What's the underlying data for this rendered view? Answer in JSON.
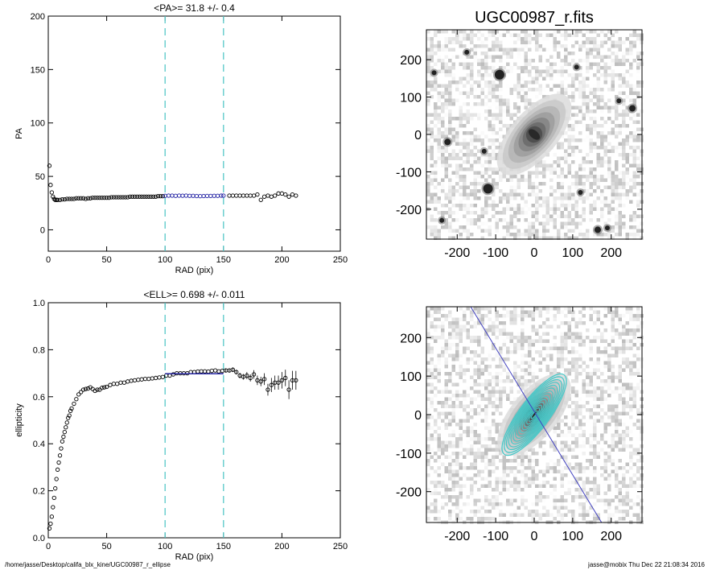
{
  "chart_data": [
    {
      "type": "scatter",
      "title": "<PA>=  31.8 +/-   0.4",
      "xlabel": "RAD (pix)",
      "ylabel": "PA",
      "xlim": [
        0,
        250
      ],
      "ylim": [
        -20,
        200
      ],
      "xticks": [
        "0",
        "50",
        "100",
        "150",
        "200",
        "250"
      ],
      "yticks": [
        "0",
        "50",
        "100",
        "150",
        "200"
      ],
      "vlines": [
        100,
        150
      ],
      "colors": {
        "data": "#000000",
        "fit": "#1a1aa0",
        "vline": "#56c8c8"
      },
      "series": [
        {
          "role": "data",
          "x": [
            1,
            2,
            3,
            4,
            5,
            6,
            7,
            8,
            10,
            12,
            14,
            16,
            18,
            20,
            22,
            24,
            26,
            28,
            30,
            32,
            34,
            36,
            38,
            40,
            42,
            44,
            46,
            48,
            50,
            52,
            54,
            56,
            58,
            60,
            62,
            64,
            66,
            68,
            70,
            72,
            74,
            76,
            78,
            80,
            82,
            84,
            86,
            88,
            90,
            92,
            94,
            96,
            98,
            155,
            158,
            161,
            164,
            167,
            170,
            173,
            176,
            179,
            182,
            185,
            188,
            191,
            194,
            197,
            200,
            203,
            206,
            209,
            212
          ],
          "y": [
            60,
            42,
            35,
            31,
            29,
            28,
            28,
            28,
            28,
            28.5,
            28.5,
            29,
            29,
            29,
            29,
            29.5,
            29.5,
            29.5,
            29.5,
            29,
            29.5,
            29.5,
            30,
            30,
            30,
            30,
            30,
            30,
            30,
            30,
            30.5,
            30.5,
            30.5,
            30.5,
            30.5,
            30.5,
            30.5,
            30.5,
            31,
            31,
            31,
            31,
            31,
            31,
            31,
            31,
            31,
            31,
            31,
            31,
            31.5,
            31.5,
            31.5,
            32,
            32,
            32,
            32,
            32,
            32,
            32,
            32,
            33,
            28,
            31,
            32,
            31,
            32,
            34,
            34,
            33,
            31,
            33,
            32
          ]
        },
        {
          "role": "fit",
          "x": [
            100,
            103,
            106,
            109,
            112,
            115,
            118,
            121,
            124,
            127,
            130,
            133,
            136,
            139,
            142,
            145,
            148,
            150
          ],
          "y": [
            31.8,
            32,
            32,
            31.8,
            32,
            31.9,
            32,
            31.8,
            31.8,
            31.6,
            31.5,
            31.6,
            31.7,
            31.7,
            31.8,
            31.8,
            32,
            32
          ]
        }
      ]
    },
    {
      "type": "scatter",
      "title": "<ELL>= 0.698 +/-  0.011",
      "xlabel": "RAD (pix)",
      "ylabel": "ellipticity",
      "xlim": [
        0,
        250
      ],
      "ylim": [
        0.0,
        1.0
      ],
      "xticks": [
        "0",
        "50",
        "100",
        "150",
        "200",
        "250"
      ],
      "yticks": [
        "0.0",
        "0.2",
        "0.4",
        "0.6",
        "0.8",
        "1.0"
      ],
      "vlines": [
        100,
        150
      ],
      "hline": {
        "value": 0.698,
        "from": 100,
        "to": 150
      },
      "series": [
        {
          "role": "data",
          "x": [
            1,
            2,
            3,
            4,
            5,
            6,
            7,
            8,
            9,
            10,
            11,
            12,
            13,
            14,
            15,
            16,
            17,
            18,
            19,
            20,
            22,
            24,
            26,
            28,
            30,
            32,
            34,
            36,
            38,
            40,
            42,
            44,
            46,
            48,
            50,
            53,
            56,
            59,
            62,
            65,
            68,
            71,
            74,
            77,
            80,
            83,
            86,
            89,
            92,
            95,
            98,
            101,
            104,
            107,
            110,
            113,
            116,
            119,
            122,
            125,
            128,
            131,
            134,
            137,
            140,
            143,
            146,
            149,
            152,
            155,
            158,
            161,
            164,
            167,
            170,
            173,
            176,
            179,
            182,
            185,
            188,
            191,
            194,
            197,
            200,
            203,
            206,
            209,
            212
          ],
          "y": [
            0.04,
            0.06,
            0.09,
            0.13,
            0.17,
            0.21,
            0.25,
            0.29,
            0.32,
            0.35,
            0.38,
            0.41,
            0.43,
            0.45,
            0.47,
            0.49,
            0.51,
            0.52,
            0.54,
            0.55,
            0.57,
            0.59,
            0.61,
            0.62,
            0.63,
            0.633,
            0.635,
            0.64,
            0.633,
            0.625,
            0.63,
            0.63,
            0.638,
            0.64,
            0.642,
            0.65,
            0.655,
            0.655,
            0.66,
            0.66,
            0.665,
            0.668,
            0.67,
            0.672,
            0.674,
            0.676,
            0.676,
            0.678,
            0.68,
            0.682,
            0.684,
            0.69,
            0.69,
            0.695,
            0.7,
            0.7,
            0.7,
            0.7,
            0.705,
            0.705,
            0.707,
            0.708,
            0.708,
            0.707,
            0.71,
            0.712,
            0.708,
            0.71,
            0.712,
            0.712,
            0.715,
            0.705,
            0.69,
            0.685,
            0.69,
            0.68,
            0.695,
            0.67,
            0.665,
            0.675,
            0.63,
            0.65,
            0.66,
            0.66,
            0.67,
            0.68,
            0.63,
            0.67,
            0.67
          ],
          "err": [
            0.005,
            0.005,
            0.005,
            0.005,
            0.005,
            0.005,
            0.005,
            0.005,
            0.005,
            0.005,
            0.005,
            0.005,
            0.005,
            0.005,
            0.005,
            0.005,
            0.005,
            0.005,
            0.005,
            0.005,
            0.005,
            0.005,
            0.005,
            0.005,
            0.005,
            0.005,
            0.005,
            0.005,
            0.005,
            0.005,
            0.005,
            0.005,
            0.005,
            0.005,
            0.005,
            0.005,
            0.005,
            0.005,
            0.005,
            0.005,
            0.005,
            0.005,
            0.005,
            0.005,
            0.005,
            0.005,
            0.005,
            0.005,
            0.005,
            0.005,
            0.005,
            0.006,
            0.006,
            0.006,
            0.006,
            0.006,
            0.006,
            0.006,
            0.006,
            0.006,
            0.006,
            0.006,
            0.006,
            0.006,
            0.006,
            0.006,
            0.006,
            0.006,
            0.008,
            0.008,
            0.01,
            0.01,
            0.012,
            0.012,
            0.015,
            0.015,
            0.018,
            0.02,
            0.02,
            0.025,
            0.025,
            0.03,
            0.03,
            0.03,
            0.035,
            0.035,
            0.04,
            0.04,
            0.04
          ]
        }
      ]
    },
    {
      "type": "heatmap",
      "title": "UGC00987_r.fits",
      "xlim": [
        -280,
        280
      ],
      "ylim": [
        -280,
        280
      ],
      "xticks": [
        "-200",
        "-100",
        "0",
        "100",
        "200"
      ],
      "yticks": [
        "-200",
        "-100",
        "0",
        "100",
        "200"
      ],
      "colormap": "gray-inverted"
    },
    {
      "type": "heatmap",
      "title": "",
      "xlim": [
        -280,
        280
      ],
      "ylim": [
        -280,
        280
      ],
      "xticks": [
        "-200",
        "-100",
        "0",
        "100",
        "200"
      ],
      "yticks": [
        "-200",
        "-100",
        "0",
        "100",
        "200"
      ],
      "colormap": "gray-inverted",
      "overlay": {
        "contour_color": "#45c8c8",
        "axis_line_color": "#4040c0"
      }
    }
  ],
  "footer": {
    "left": "/home/jasse/Desktop/califa_blx_kine/UGC00987_r_ellipse",
    "right": "jasse@mobix  Thu Dec 22 21:08:34 2016"
  }
}
